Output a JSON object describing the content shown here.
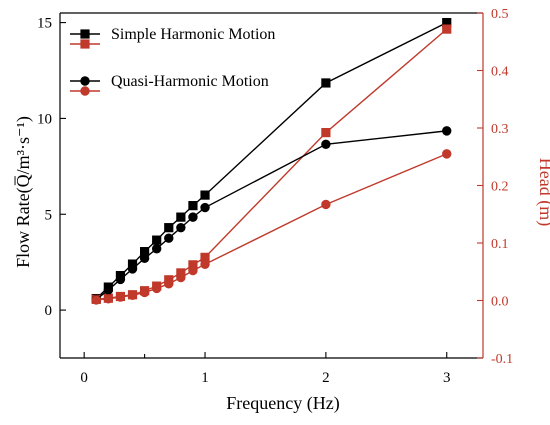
{
  "chart_data": {
    "type": "line",
    "xlabel": "Frequency (Hz)",
    "ylabel_left": "Flow Rate(Q̅/m³·s⁻¹)",
    "ylabel_right": "Head (m)",
    "xlim": [
      -0.2,
      3.3
    ],
    "ylim_left": [
      -2.5,
      15.5
    ],
    "ylim_right": [
      -0.1,
      0.5
    ],
    "x_ticks": [
      {
        "value": 0,
        "label": "0"
      },
      {
        "value": 0.5,
        "label": ""
      },
      {
        "value": 1,
        "label": "1"
      },
      {
        "value": 2,
        "label": "2"
      },
      {
        "value": 3,
        "label": "3"
      }
    ],
    "y_left_ticks": [
      0,
      5,
      10,
      15
    ],
    "y_right_ticks": [
      -0.1,
      0.0,
      0.1,
      0.2,
      0.3,
      0.4,
      0.5
    ],
    "grid": false,
    "legend_position": "top-left",
    "series": [
      {
        "name": "Simple Harmonic Motion",
        "axis": "left",
        "color": "#000000",
        "marker": "square",
        "x": [
          0.1,
          0.2,
          0.3,
          0.4,
          0.5,
          0.6,
          0.7,
          0.8,
          0.9,
          1.0,
          2.0,
          3.0
        ],
        "y": [
          0.6,
          1.2,
          1.8,
          2.4,
          3.05,
          3.65,
          4.3,
          4.85,
          5.45,
          6.0,
          11.85,
          15.0
        ]
      },
      {
        "name": "",
        "axis": "right",
        "color": "#c0392b",
        "marker": "square",
        "x": [
          0.1,
          0.2,
          0.3,
          0.4,
          0.5,
          0.6,
          0.7,
          0.8,
          0.9,
          1.0,
          2.0,
          3.0
        ],
        "y": [
          0.002,
          0.004,
          0.007,
          0.01,
          0.017,
          0.025,
          0.036,
          0.048,
          0.062,
          0.075,
          0.292,
          0.472
        ]
      },
      {
        "name": "Quasi-Harmonic Motion",
        "axis": "left",
        "color": "#000000",
        "marker": "circle",
        "x": [
          0.1,
          0.2,
          0.3,
          0.4,
          0.5,
          0.6,
          0.7,
          0.8,
          0.9,
          1.0,
          2.0,
          3.0
        ],
        "y": [
          0.55,
          1.05,
          1.6,
          2.15,
          2.7,
          3.2,
          3.75,
          4.3,
          4.85,
          5.35,
          8.65,
          9.35
        ]
      },
      {
        "name": "",
        "axis": "right",
        "color": "#c0392b",
        "marker": "circle",
        "x": [
          0.1,
          0.2,
          0.3,
          0.4,
          0.5,
          0.6,
          0.7,
          0.8,
          0.9,
          1.0,
          2.0,
          3.0
        ],
        "y": [
          0.001,
          0.003,
          0.006,
          0.009,
          0.014,
          0.021,
          0.029,
          0.04,
          0.052,
          0.063,
          0.167,
          0.255
        ]
      }
    ]
  }
}
